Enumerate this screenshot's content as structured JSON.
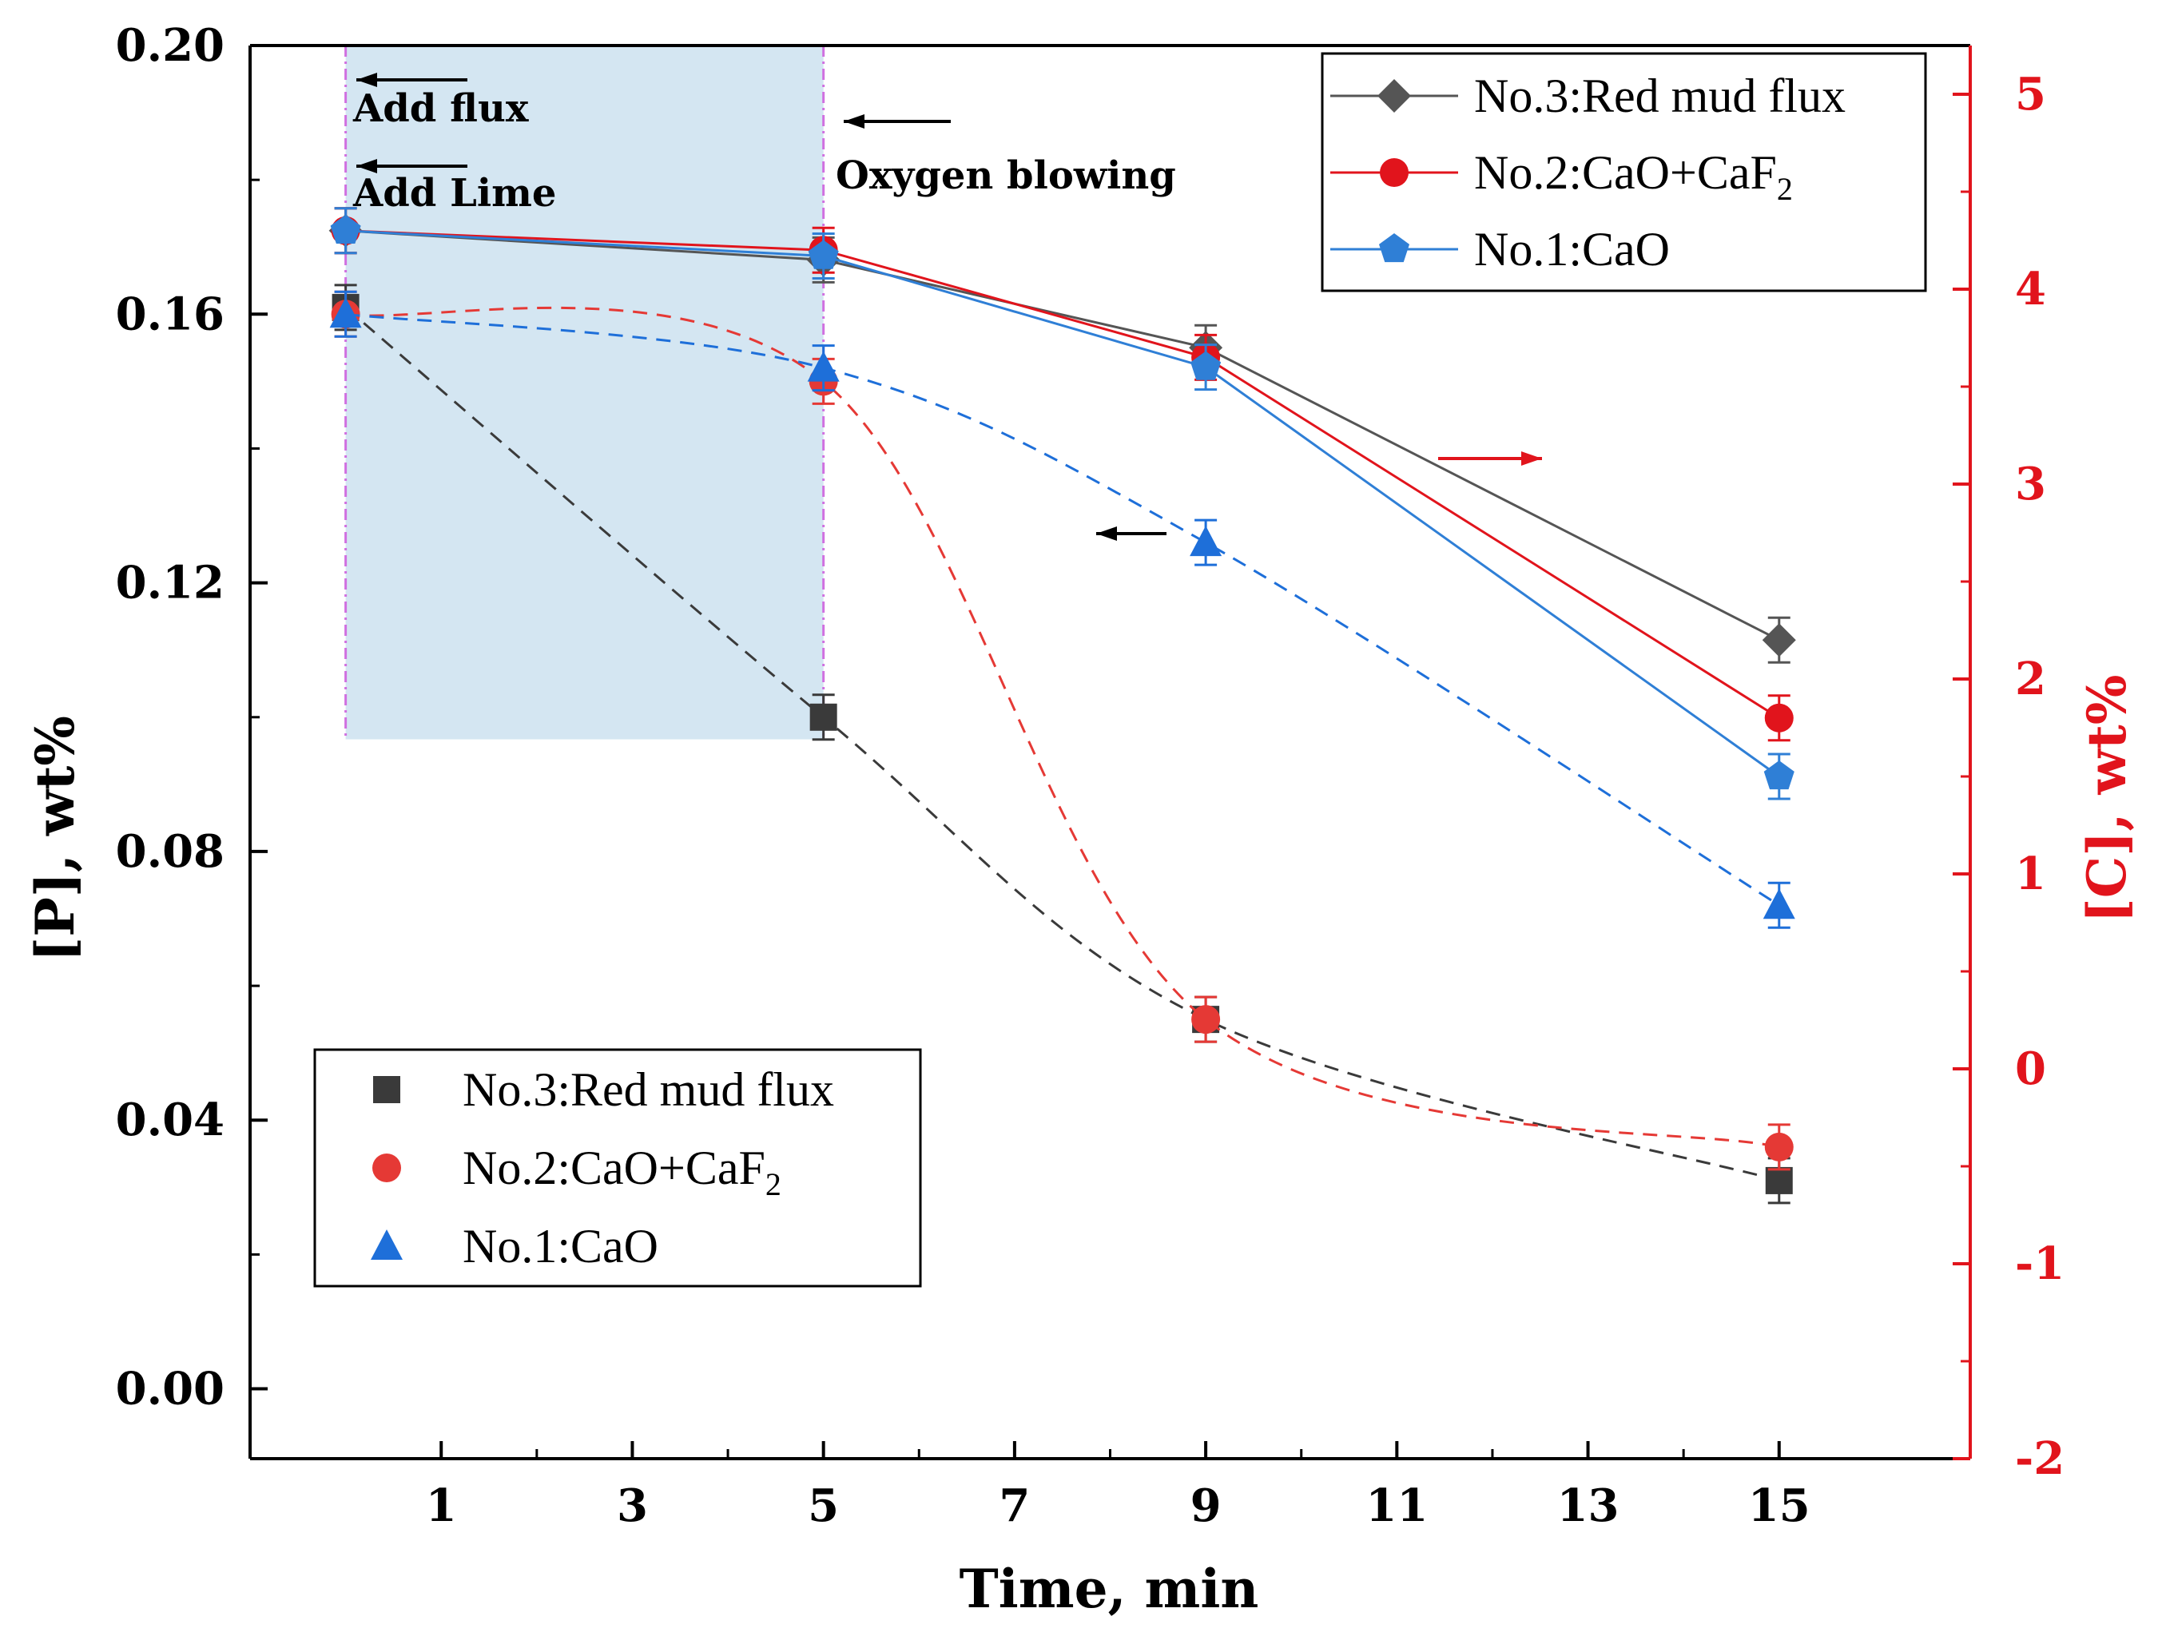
{
  "chart_data": {
    "type": "line",
    "x_axis": {
      "label": "Time, min",
      "ticks": [
        1,
        3,
        5,
        7,
        9,
        11,
        13,
        15
      ],
      "range": [
        -1,
        17
      ]
    },
    "y_left": {
      "label": "[P], wt%",
      "ticks": [
        "0.00",
        "0.04",
        "0.08",
        "0.12",
        "0.16",
        "0.20"
      ],
      "tick_values": [
        0,
        0.04,
        0.08,
        0.12,
        0.16,
        0.2
      ],
      "range": [
        -0.0104,
        0.2
      ],
      "color": "#000000"
    },
    "y_right": {
      "label": "[C], wt%",
      "ticks": [
        "-2",
        "-1",
        "0",
        "1",
        "2",
        "3",
        "4",
        "5"
      ],
      "tick_values": [
        -2,
        -1,
        0,
        1,
        2,
        3,
        4,
        5
      ],
      "range": [
        -2,
        5.25
      ],
      "color": "#e1141c"
    },
    "highlight": {
      "x_range": [
        0,
        5
      ],
      "y_low": 0.0967,
      "color": "#d4e6f2"
    },
    "phosphorus_series": [
      {
        "name": "No.3:Red mud flux",
        "color": "#3a3a3a",
        "marker": "square",
        "x": [
          0,
          5,
          9,
          15
        ],
        "y": [
          0.161,
          0.1,
          0.055,
          0.031
        ]
      },
      {
        "name": "No.2:CaO+CaF2",
        "color": "#e53935",
        "marker": "circle",
        "x": [
          0,
          5,
          9,
          15
        ],
        "y": [
          0.16,
          0.15,
          0.055,
          0.036
        ]
      },
      {
        "name": "No.1:CaO",
        "color": "#1e6fd9",
        "marker": "triangle",
        "x": [
          0,
          5,
          9,
          15
        ],
        "y": [
          0.16,
          0.152,
          0.126,
          0.072
        ]
      }
    ],
    "carbon_series": [
      {
        "name": "No.3:Red mud flux",
        "color": "#555555",
        "marker": "diamond",
        "x": [
          0,
          5,
          9,
          15
        ],
        "y": [
          4.3,
          4.15,
          3.7,
          2.2
        ]
      },
      {
        "name": "No.2:CaO+CaF2",
        "color": "#e1141c",
        "marker": "circle",
        "x": [
          0,
          5,
          9,
          15
        ],
        "y": [
          4.3,
          4.2,
          3.65,
          1.8
        ]
      },
      {
        "name": "No.1:CaO",
        "color": "#2f7fd6",
        "marker": "pentagon",
        "x": [
          0,
          5,
          9,
          15
        ],
        "y": [
          4.3,
          4.17,
          3.6,
          1.5
        ]
      }
    ],
    "annotations": {
      "add_flux": "Add flux",
      "add_lime": "Add Lime",
      "oxygen_blowing": "Oxygen blowing"
    },
    "legend_top_right": {
      "entries": [
        {
          "prefix": "No.3:Red mud flux",
          "sub": ""
        },
        {
          "prefix": "No.2:CaO+CaF",
          "sub": "2"
        },
        {
          "prefix": "No.1:CaO",
          "sub": ""
        }
      ]
    },
    "legend_bottom_left": {
      "entries": [
        {
          "prefix": "No.3:Red mud flux",
          "sub": ""
        },
        {
          "prefix": "No.2:CaO+CaF",
          "sub": "2"
        },
        {
          "prefix": "No.1:CaO",
          "sub": ""
        }
      ]
    }
  }
}
